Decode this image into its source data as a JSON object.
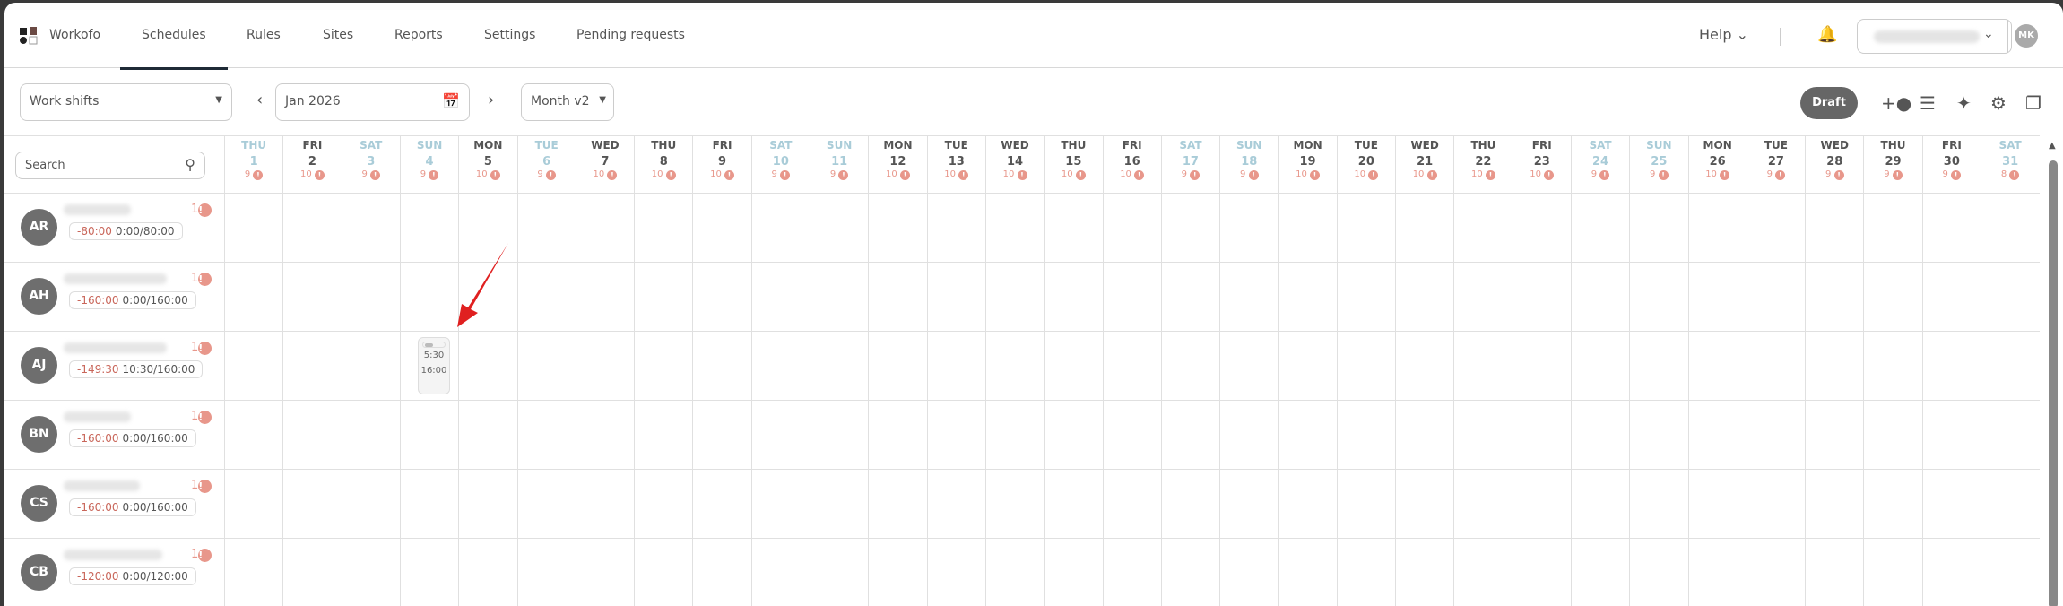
{
  "nav": {
    "brand": "Workofo",
    "tabs": [
      "Schedules",
      "Rules",
      "Sites",
      "Reports",
      "Settings",
      "Pending requests"
    ],
    "active_tab": "Schedules",
    "help": "Help",
    "user_initials": "MK"
  },
  "toolbar": {
    "view_select": "Work shifts",
    "date": "Jan 2026",
    "mode": "Month v2",
    "status": "Draft",
    "icons": [
      "add-person-icon",
      "tune-icon",
      "sparkle-icon",
      "gear-icon",
      "copy-icon"
    ]
  },
  "search": {
    "placeholder": "Search"
  },
  "days": [
    {
      "dow": "THU",
      "d": "1",
      "c": "9",
      "off": true
    },
    {
      "dow": "FRI",
      "d": "2",
      "c": "10"
    },
    {
      "dow": "SAT",
      "d": "3",
      "c": "9",
      "off": true
    },
    {
      "dow": "SUN",
      "d": "4",
      "c": "9",
      "off": true
    },
    {
      "dow": "MON",
      "d": "5",
      "c": "10"
    },
    {
      "dow": "TUE",
      "d": "6",
      "c": "9",
      "off": true
    },
    {
      "dow": "WED",
      "d": "7",
      "c": "10"
    },
    {
      "dow": "THU",
      "d": "8",
      "c": "10"
    },
    {
      "dow": "FRI",
      "d": "9",
      "c": "10"
    },
    {
      "dow": "SAT",
      "d": "10",
      "c": "9",
      "off": true
    },
    {
      "dow": "SUN",
      "d": "11",
      "c": "9",
      "off": true
    },
    {
      "dow": "MON",
      "d": "12",
      "c": "10"
    },
    {
      "dow": "TUE",
      "d": "13",
      "c": "10"
    },
    {
      "dow": "WED",
      "d": "14",
      "c": "10"
    },
    {
      "dow": "THU",
      "d": "15",
      "c": "10"
    },
    {
      "dow": "FRI",
      "d": "16",
      "c": "10"
    },
    {
      "dow": "SAT",
      "d": "17",
      "c": "9",
      "off": true
    },
    {
      "dow": "SUN",
      "d": "18",
      "c": "9",
      "off": true
    },
    {
      "dow": "MON",
      "d": "19",
      "c": "10"
    },
    {
      "dow": "TUE",
      "d": "20",
      "c": "10"
    },
    {
      "dow": "WED",
      "d": "21",
      "c": "10"
    },
    {
      "dow": "THU",
      "d": "22",
      "c": "10"
    },
    {
      "dow": "FRI",
      "d": "23",
      "c": "10"
    },
    {
      "dow": "SAT",
      "d": "24",
      "c": "9",
      "off": true
    },
    {
      "dow": "SUN",
      "d": "25",
      "c": "9",
      "off": true
    },
    {
      "dow": "MON",
      "d": "26",
      "c": "10"
    },
    {
      "dow": "TUE",
      "d": "27",
      "c": "9"
    },
    {
      "dow": "WED",
      "d": "28",
      "c": "9"
    },
    {
      "dow": "THU",
      "d": "29",
      "c": "9"
    },
    {
      "dow": "FRI",
      "d": "30",
      "c": "9"
    },
    {
      "dow": "SAT",
      "d": "31",
      "c": "8",
      "off": true
    }
  ],
  "employees": [
    {
      "initials": "AR",
      "warn": "1",
      "diff": "-80:00",
      "hours": "0:00/80:00"
    },
    {
      "initials": "AH",
      "warn": "1",
      "diff": "-160:00",
      "hours": "0:00/160:00"
    },
    {
      "initials": "AJ",
      "warn": "1",
      "diff": "-149:30",
      "hours": "10:30/160:00"
    },
    {
      "initials": "BN",
      "warn": "1",
      "diff": "-160:00",
      "hours": "0:00/160:00"
    },
    {
      "initials": "CS",
      "warn": "1",
      "diff": "-160:00",
      "hours": "0:00/160:00"
    },
    {
      "initials": "CB",
      "warn": "1",
      "diff": "-120:00",
      "hours": "0:00/120:00"
    }
  ],
  "shift": {
    "employee": "AJ",
    "day": "4",
    "start": "5:30",
    "end": "16:00"
  },
  "colors": {
    "accent": "#1f2a36",
    "warning": "#e8978b",
    "weekend": "#a9ccd8",
    "annotation_arrow": "#e02020"
  }
}
